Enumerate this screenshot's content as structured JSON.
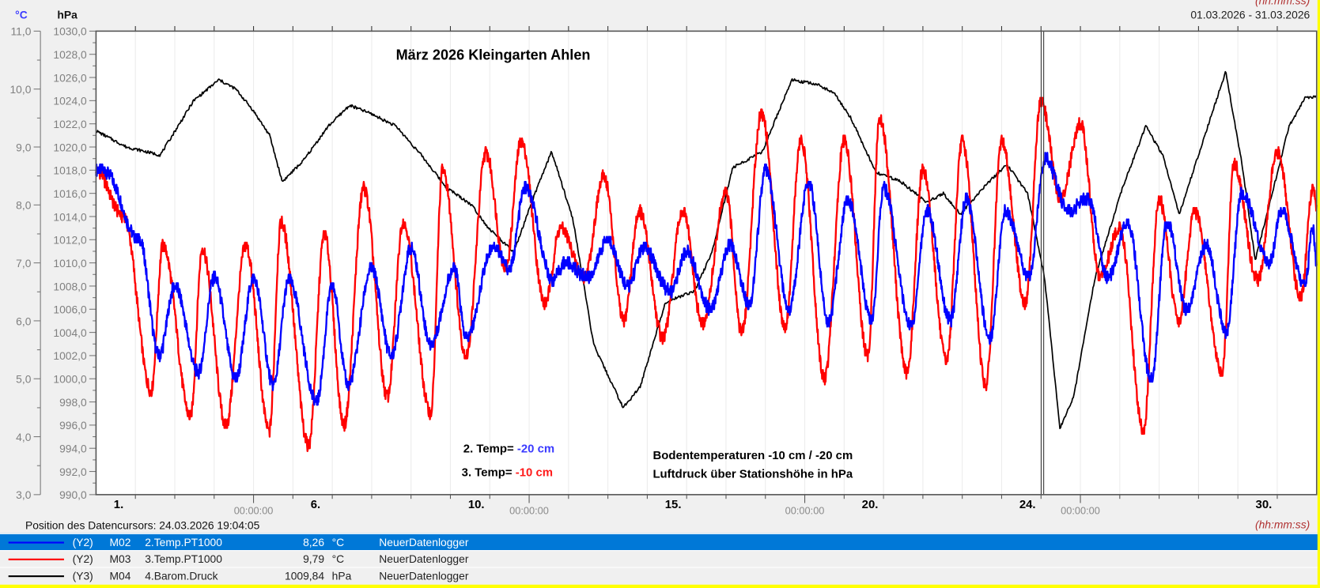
{
  "header": {
    "unit_left": "°C",
    "unit_right": "hPa",
    "date_range": "01.03.2026 - 31.03.2026",
    "time_format": "(hh:mm:ss)"
  },
  "cursor": {
    "label": "Position des Datencursors: 24.03.2026 19:04:05",
    "day": 23.79
  },
  "legend": [
    {
      "axis": "(Y2)",
      "id": "M02",
      "name": "2.Temp.PT1000",
      "value": "8,26",
      "unit": "°C",
      "logger": "NeuerDatenlogger",
      "color": "#0000ff",
      "selected": true
    },
    {
      "axis": "(Y2)",
      "id": "M03",
      "name": "3.Temp.PT1000",
      "value": "9,79",
      "unit": "°C",
      "logger": "NeuerDatenlogger",
      "color": "#ff0000",
      "selected": false
    },
    {
      "axis": "(Y3)",
      "id": "M04",
      "name": "4.Barom.Druck",
      "value": "1009,84",
      "unit": "hPa",
      "logger": "NeuerDatenlogger",
      "color": "#000000",
      "selected": false
    }
  ],
  "chart_data": {
    "type": "line",
    "title": "März 2026 Kleingarten Ahlen",
    "annotations": {
      "t2_prefix": "2. Temp= ",
      "t2_value": "-20 cm",
      "t3_prefix": "3. Temp= ",
      "t3_value": "-10 cm",
      "desc1": "Bodentemperaturen -10 cm / -20 cm",
      "desc2": "Luftdruck über Stationshöhe in hPa"
    },
    "xlim": [
      0,
      31
    ],
    "x_unit": "days since 01.03.2026 00:00",
    "day_labels": [
      {
        "day": 1,
        "text": "1."
      },
      {
        "day": 6,
        "text": "6."
      },
      {
        "day": 10,
        "text": "10."
      },
      {
        "day": 15,
        "text": "15."
      },
      {
        "day": 20,
        "text": "20."
      },
      {
        "day": 24,
        "text": "24."
      },
      {
        "day": 30,
        "text": "30."
      }
    ],
    "time_labels": [
      {
        "day": 4,
        "text": "00:00:00"
      },
      {
        "day": 11,
        "text": "00:00:00"
      },
      {
        "day": 18,
        "text": "00:00:00"
      },
      {
        "day": 25,
        "text": "00:00:00"
      }
    ],
    "y_left": {
      "label": "°C",
      "lim": [
        3,
        11
      ],
      "ticks": [
        "3,0",
        "4,0",
        "5,0",
        "6,0",
        "7,0",
        "8,0",
        "9,0",
        "10,0",
        "11,0"
      ]
    },
    "y_right": {
      "label": "hPa",
      "lim": [
        990,
        1030
      ],
      "ticks": [
        "990,0",
        "992,0",
        "994,0",
        "996,0",
        "998,0",
        "1000,0",
        "1002,0",
        "1004,0",
        "1006,0",
        "1008,0",
        "1010,0",
        "1012,0",
        "1014,0",
        "1016,0",
        "1018,0",
        "1020,0",
        "1022,0",
        "1024,0",
        "1026,0",
        "1028,0",
        "1030,0"
      ]
    },
    "series": [
      {
        "name": "2.Temp.PT1000 (-20 cm)",
        "axis": "left",
        "color": "#0000ff",
        "points": [
          [
            0,
            8.6
          ],
          [
            0.2,
            8.6
          ],
          [
            1.1,
            7.4
          ],
          [
            1.6,
            5.4
          ],
          [
            2.0,
            6.6
          ],
          [
            2.6,
            5.1
          ],
          [
            3.0,
            6.75
          ],
          [
            3.55,
            5.0
          ],
          [
            4.0,
            6.75
          ],
          [
            4.5,
            4.9
          ],
          [
            4.9,
            6.7
          ],
          [
            5.6,
            4.6
          ],
          [
            6.0,
            6.6
          ],
          [
            6.4,
            4.9
          ],
          [
            7.0,
            6.9
          ],
          [
            7.5,
            5.4
          ],
          [
            8.0,
            7.25
          ],
          [
            8.5,
            5.6
          ],
          [
            9.1,
            6.9
          ],
          [
            9.4,
            5.7
          ],
          [
            10.1,
            7.3
          ],
          [
            10.5,
            6.9
          ],
          [
            10.9,
            8.3
          ],
          [
            11.6,
            6.7
          ],
          [
            11.9,
            7.0
          ],
          [
            12.5,
            6.75
          ],
          [
            13.0,
            7.4
          ],
          [
            13.5,
            6.6
          ],
          [
            13.9,
            7.25
          ],
          [
            14.6,
            6.5
          ],
          [
            15.0,
            7.2
          ],
          [
            15.6,
            6.2
          ],
          [
            16.1,
            7.3
          ],
          [
            16.6,
            6.3
          ],
          [
            17.0,
            8.6
          ],
          [
            17.6,
            6.2
          ],
          [
            18.1,
            8.4
          ],
          [
            18.6,
            6.0
          ],
          [
            19.1,
            8.1
          ],
          [
            19.7,
            6.0
          ],
          [
            20.0,
            8.3
          ],
          [
            20.7,
            5.9
          ],
          [
            21.1,
            7.9
          ],
          [
            21.7,
            6.0
          ],
          [
            22.1,
            8.1
          ],
          [
            22.7,
            5.7
          ],
          [
            23.1,
            7.9
          ],
          [
            23.7,
            6.75
          ],
          [
            24.1,
            8.8
          ],
          [
            24.7,
            7.9
          ],
          [
            25.2,
            8.1
          ],
          [
            25.7,
            6.75
          ],
          [
            26.2,
            7.7
          ],
          [
            26.8,
            5.0
          ],
          [
            27.2,
            7.7
          ],
          [
            27.7,
            6.2
          ],
          [
            28.2,
            7.3
          ],
          [
            28.7,
            5.8
          ],
          [
            29.1,
            8.2
          ],
          [
            29.8,
            7.0
          ],
          [
            30.1,
            7.9
          ],
          [
            30.7,
            6.6
          ],
          [
            30.9,
            7.6
          ],
          [
            31,
            7.0
          ]
        ]
      },
      {
        "name": "3.Temp.PT1000 (-10 cm)",
        "axis": "left",
        "color": "#ff0000",
        "points": [
          [
            0,
            8.6
          ],
          [
            0.7,
            7.8
          ],
          [
            1.4,
            4.8
          ],
          [
            1.7,
            7.3
          ],
          [
            2.4,
            4.35
          ],
          [
            2.7,
            7.25
          ],
          [
            3.3,
            4.2
          ],
          [
            3.8,
            7.3
          ],
          [
            4.4,
            4.1
          ],
          [
            4.7,
            7.7
          ],
          [
            5.4,
            3.85
          ],
          [
            5.8,
            7.5
          ],
          [
            6.3,
            4.2
          ],
          [
            6.8,
            8.3
          ],
          [
            7.4,
            4.7
          ],
          [
            7.8,
            7.7
          ],
          [
            8.5,
            4.4
          ],
          [
            8.8,
            8.6
          ],
          [
            9.4,
            5.4
          ],
          [
            9.9,
            8.9
          ],
          [
            10.4,
            6.9
          ],
          [
            10.8,
            9.1
          ],
          [
            11.4,
            6.3
          ],
          [
            11.8,
            7.6
          ],
          [
            12.4,
            6.75
          ],
          [
            12.9,
            8.5
          ],
          [
            13.4,
            6.0
          ],
          [
            13.8,
            7.9
          ],
          [
            14.4,
            5.7
          ],
          [
            14.9,
            7.9
          ],
          [
            15.4,
            5.95
          ],
          [
            16.0,
            8.2
          ],
          [
            16.4,
            5.8
          ],
          [
            16.9,
            9.6
          ],
          [
            17.5,
            5.9
          ],
          [
            17.9,
            9.1
          ],
          [
            18.5,
            5.0
          ],
          [
            19.0,
            9.1
          ],
          [
            19.6,
            5.4
          ],
          [
            19.9,
            9.5
          ],
          [
            20.6,
            5.1
          ],
          [
            21.0,
            8.6
          ],
          [
            21.6,
            5.3
          ],
          [
            22.0,
            9.1
          ],
          [
            22.6,
            4.9
          ],
          [
            23.0,
            9.1
          ],
          [
            23.6,
            6.3
          ],
          [
            24.0,
            9.8
          ],
          [
            24.5,
            8.1
          ],
          [
            25.0,
            9.4
          ],
          [
            25.5,
            6.75
          ],
          [
            26.0,
            7.6
          ],
          [
            26.6,
            4.1
          ],
          [
            27.0,
            8.1
          ],
          [
            27.5,
            6.0
          ],
          [
            27.9,
            7.9
          ],
          [
            28.6,
            5.1
          ],
          [
            28.9,
            8.7
          ],
          [
            29.5,
            6.7
          ],
          [
            30.0,
            8.9
          ],
          [
            30.6,
            6.4
          ],
          [
            30.9,
            8.3
          ],
          [
            31,
            8.0
          ]
        ]
      },
      {
        "name": "4.Barom.Druck",
        "axis": "right",
        "color": "#000000",
        "points": [
          [
            0,
            1021.4
          ],
          [
            0.77,
            1020
          ],
          [
            1.63,
            1019.3
          ],
          [
            2.48,
            1024
          ],
          [
            3.12,
            1025.8
          ],
          [
            3.55,
            1025
          ],
          [
            3.98,
            1023.2
          ],
          [
            4.41,
            1021
          ],
          [
            4.73,
            1017
          ],
          [
            5.26,
            1018.8
          ],
          [
            5.9,
            1021.8
          ],
          [
            6.44,
            1023.6
          ],
          [
            6.97,
            1022.9
          ],
          [
            7.62,
            1021.8
          ],
          [
            8.26,
            1019.3
          ],
          [
            8.9,
            1016.5
          ],
          [
            9.54,
            1015
          ],
          [
            9.97,
            1013
          ],
          [
            10.61,
            1010.9
          ],
          [
            11.15,
            1016
          ],
          [
            11.57,
            1019.6
          ],
          [
            12.11,
            1013.8
          ],
          [
            12.64,
            1002.9
          ],
          [
            13.39,
            997.5
          ],
          [
            13.82,
            999.3
          ],
          [
            14.46,
            1006.6
          ],
          [
            15.21,
            1007.6
          ],
          [
            15.64,
            1010.9
          ],
          [
            16.17,
            1018.2
          ],
          [
            16.92,
            1019.6
          ],
          [
            17.67,
            1025.8
          ],
          [
            18.31,
            1025.4
          ],
          [
            18.74,
            1024.7
          ],
          [
            19.17,
            1022.5
          ],
          [
            19.81,
            1017.8
          ],
          [
            20.45,
            1017
          ],
          [
            21.1,
            1015.2
          ],
          [
            21.52,
            1016
          ],
          [
            21.95,
            1014.2
          ],
          [
            22.59,
            1016.7
          ],
          [
            23.13,
            1018.5
          ],
          [
            23.66,
            1016
          ],
          [
            24.09,
            1008.7
          ],
          [
            24.48,
            995.7
          ],
          [
            24.84,
            998.6
          ],
          [
            25.37,
            1008.7
          ],
          [
            26.02,
            1016
          ],
          [
            26.66,
            1021.8
          ],
          [
            27.09,
            1019.3
          ],
          [
            27.51,
            1014.2
          ],
          [
            28.16,
            1021
          ],
          [
            28.69,
            1026.5
          ],
          [
            29.12,
            1018.2
          ],
          [
            29.44,
            1010.2
          ],
          [
            29.87,
            1016
          ],
          [
            30.3,
            1021.8
          ],
          [
            30.72,
            1024.3
          ],
          [
            31,
            1024.3
          ]
        ]
      }
    ]
  }
}
